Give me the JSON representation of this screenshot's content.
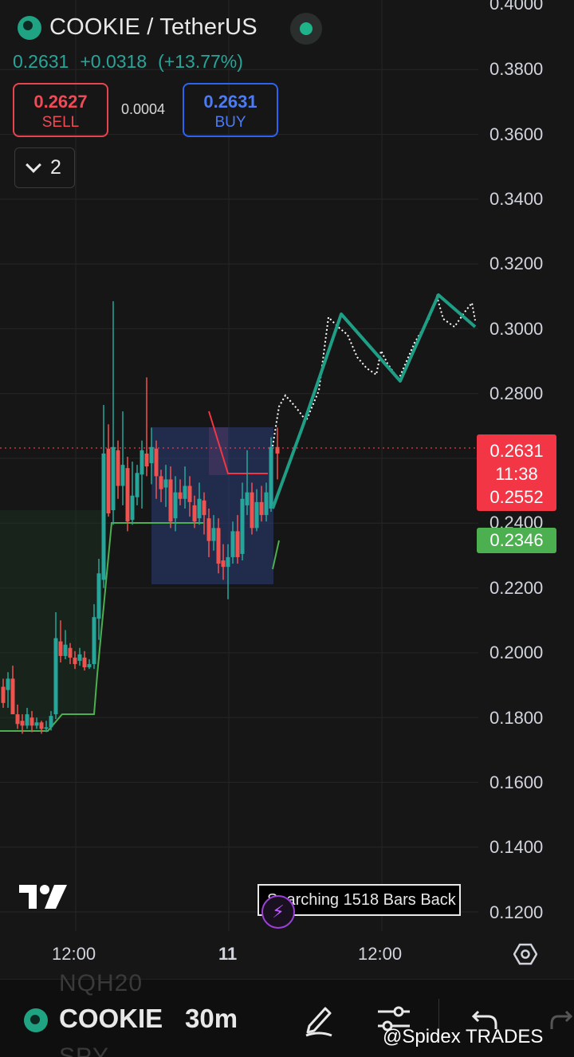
{
  "header": {
    "symbol": "COOKIE / TetherUS",
    "last_price": "0.2631",
    "change": "+0.0318",
    "change_pct": "(+13.77%)"
  },
  "trade": {
    "sell_price": "0.2627",
    "sell_label": "SELL",
    "spread": "0.0004",
    "buy_price": "0.2631",
    "buy_label": "BUY"
  },
  "indicators_toggle": {
    "count": "2"
  },
  "price_axis": {
    "labels": [
      "0.4000",
      "0.3800",
      "0.3600",
      "0.3400",
      "0.3200",
      "0.3000",
      "0.2800",
      "0.2400",
      "0.2200",
      "0.2000",
      "0.1800",
      "0.1600",
      "0.1400",
      "0.1200"
    ],
    "current_price": "0.2631",
    "countdown": "11:38",
    "red_level": "0.2552",
    "green_level": "0.2346"
  },
  "time_axis": {
    "labels": [
      "12:00",
      "11",
      "12:00"
    ]
  },
  "overlay": {
    "search_text": "Searching 1518 Bars Back"
  },
  "bottom_bar": {
    "symbol": "COOKIE",
    "interval": "30m",
    "ghost_top": "NQH20",
    "ghost_bottom": "SPY",
    "watermark": "@Spidex TRADES"
  },
  "colors": {
    "up": "#26a69a",
    "down": "#ef5350",
    "projection": "#1f9e86",
    "level_green": "#4caf50",
    "box_fill": "#2b3f7a"
  },
  "icons": [
    "cookie-logo-icon",
    "live-status-icon",
    "chevron-down-icon",
    "tradingview-logo-icon",
    "lightning-bolt-icon",
    "settings-hexagon-icon",
    "pencil-icon",
    "sliders-icon",
    "undo-icon",
    "redo-icon"
  ]
}
